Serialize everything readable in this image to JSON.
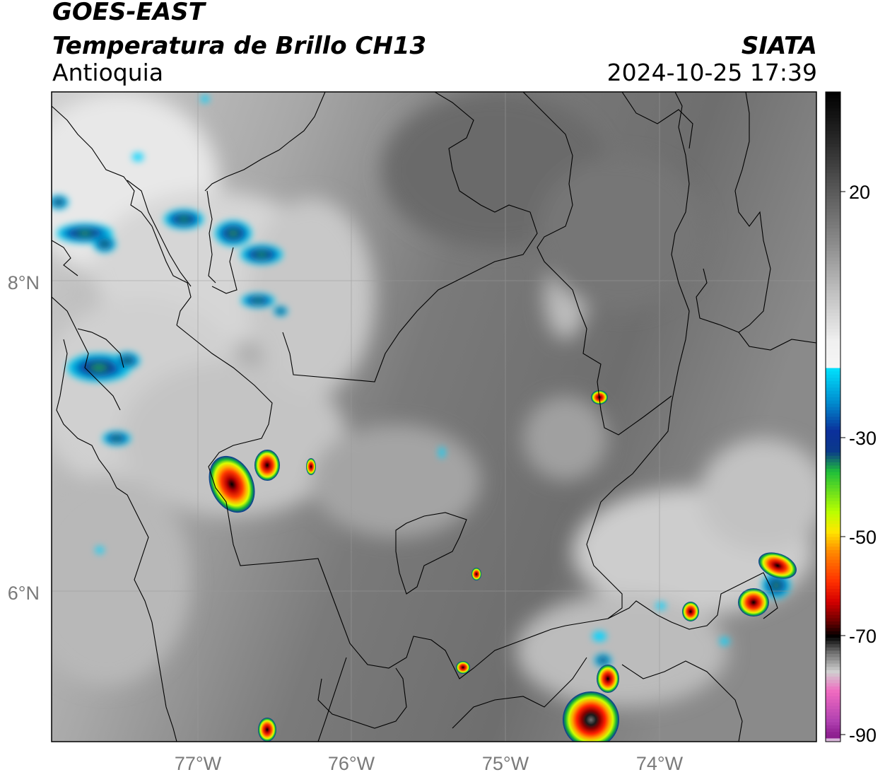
{
  "header": {
    "satellite": "GOES-EAST",
    "product": "Temperatura de Brillo CH13",
    "region": "Antioquia",
    "organization": "SIATA",
    "timestamp": "2024-10-25 17:39"
  },
  "map": {
    "lat_labels": [
      "8°N",
      "6°N"
    ],
    "lon_labels": [
      "77°W",
      "76°W",
      "75°W",
      "74°W"
    ],
    "lat_values": [
      8,
      6
    ],
    "lon_values": [
      -77,
      -76,
      -75,
      -74
    ],
    "extent": {
      "lon_min": -77.95,
      "lon_max": -73.0,
      "lat_min": 4.95,
      "lat_max": 9.15
    },
    "gridlines": true
  },
  "colorbar": {
    "tick_labels": [
      "20",
      "-30",
      "-50",
      "-70",
      "-90"
    ],
    "tick_values": [
      20,
      -30,
      -50,
      -70,
      -90
    ],
    "range": [
      -90,
      40
    ],
    "colors": {
      "warm_dark": "#111111",
      "mid_gray": "#8c8c8c",
      "cold_white": "#f5f5f5",
      "cyan": "#00e5ff",
      "blue": "#0b2f9a",
      "green": "#1fbf3a",
      "yellow": "#ffe600",
      "orange": "#ff8a00",
      "red": "#d40000",
      "black": "#000000",
      "pink": "#f06ac0",
      "purple": "#8a1a8c"
    }
  }
}
